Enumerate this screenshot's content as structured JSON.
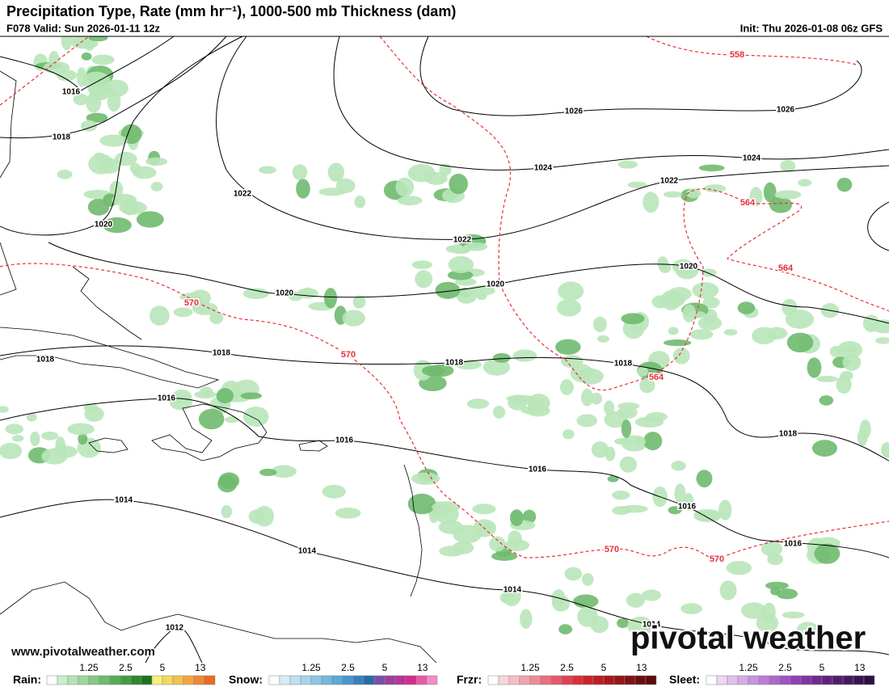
{
  "header": {
    "title": "Precipitation Type, Rate (mm hr⁻¹), 1000-500 mb Thickness (dam)",
    "valid": "F078 Valid: Sun 2026-01-11 12z",
    "init": "Init: Thu 2026-01-08 06z GFS"
  },
  "map": {
    "isobar_labels": [
      "1016",
      "1018",
      "1020",
      "1022",
      "1020",
      "1018",
      "1018",
      "1016",
      "1014",
      "1014",
      "1012",
      "1026",
      "1026",
      "1024",
      "1024",
      "1022",
      "1022",
      "1020",
      "1020",
      "1018",
      "1018",
      "1018",
      "1016",
      "1016",
      "1016",
      "1016",
      "1014",
      "1014"
    ],
    "thickness_labels": [
      "558",
      "564",
      "564",
      "564",
      "570",
      "570",
      "570",
      "570"
    ],
    "watermark": "www.pivotalweather.com",
    "logo": "pivotal weather"
  },
  "legend": [
    {
      "name": "Rain:",
      "ticks": [
        "1.25",
        "2.5",
        "5",
        "13"
      ],
      "colors": [
        "#ffffff",
        "#c9efc9",
        "#b2e3b2",
        "#9bd69b",
        "#84c984",
        "#6dbb6d",
        "#56ad56",
        "#3f9f3f",
        "#2d8a2d",
        "#1c751c",
        "#f4f07a",
        "#f4d85f",
        "#f4c150",
        "#f3a640",
        "#f08832",
        "#ec6a24"
      ]
    },
    {
      "name": "Snow:",
      "ticks": [
        "1.25",
        "2.5",
        "5",
        "13"
      ],
      "colors": [
        "#ffffff",
        "#d6ecf7",
        "#bfe0f2",
        "#a7d3ec",
        "#8fc5e6",
        "#76b6df",
        "#5ea7d7",
        "#4896cc",
        "#3582bf",
        "#2a6aa8",
        "#7a4fa8",
        "#9a3fa0",
        "#b83396",
        "#d02c8c",
        "#e85aa8",
        "#f28cc4"
      ]
    },
    {
      "name": "Frzr:",
      "ticks": [
        "1.25",
        "2.5",
        "5",
        "13"
      ],
      "colors": [
        "#ffffff",
        "#f9d4dc",
        "#f6bcc6",
        "#f2a3b0",
        "#ee8a98",
        "#ea7080",
        "#e55868",
        "#e04050",
        "#d83038",
        "#cc2428",
        "#bc1c20",
        "#a8181c",
        "#941418",
        "#801014",
        "#6c0c10",
        "#5a0a0c"
      ]
    },
    {
      "name": "Sleet:",
      "ticks": [
        "1.25",
        "2.5",
        "5",
        "13"
      ],
      "colors": [
        "#ffffff",
        "#ecd6f4",
        "#e0c0ee",
        "#d3aae6",
        "#c794de",
        "#ba7ed5",
        "#ad68cb",
        "#9f54c0",
        "#9042b3",
        "#8034a4",
        "#702a92",
        "#602280",
        "#521c6e",
        "#46185e",
        "#3a1450",
        "#2e1042"
      ]
    }
  ]
}
